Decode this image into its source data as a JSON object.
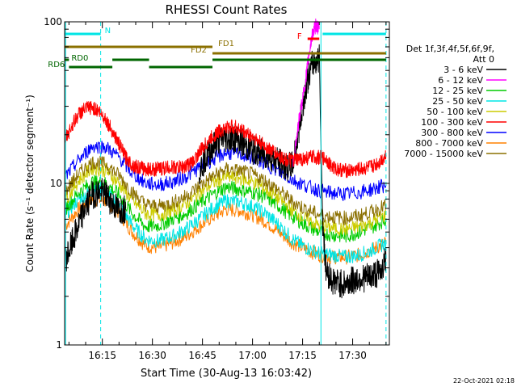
{
  "chart_data": {
    "type": "line",
    "title": "RHESSI Count Rates",
    "xlabel": "Start Time (30-Aug-13 16:03:42)",
    "ylabel": "Count Rate (s⁻¹ detector segment⁻¹)",
    "footer": "22-Oct-2021 02:18",
    "y_scale": "log",
    "ylim": [
      1,
      100
    ],
    "xlim": [
      "16:03:42",
      "17:41:00"
    ],
    "x_ticks": [
      "16:15",
      "16:30",
      "16:45",
      "17:00",
      "17:15",
      "17:30"
    ],
    "y_ticks": [
      "1",
      "10",
      "100"
    ],
    "legend": {
      "placement": "right",
      "header": [
        "Det 1f,3f,4f,5f,6f,9f,",
        "Att 0"
      ],
      "entries": [
        {
          "label": "3 - 6 keV",
          "color": "#000000"
        },
        {
          "label": "6 - 12 keV",
          "color": "#ff00ff"
        },
        {
          "label": "12 - 25 keV",
          "color": "#00cc00"
        },
        {
          "label": "25 - 50 keV",
          "color": "#00e5e5"
        },
        {
          "label": "50 - 100 keV",
          "color": "#cccc00"
        },
        {
          "label": "100 - 300 keV",
          "color": "#ff0000"
        },
        {
          "label": "300 - 800 keV",
          "color": "#0000ff"
        },
        {
          "label": "800 - 7000 keV",
          "color": "#ff8000"
        },
        {
          "label": "7000 - 15000 keV",
          "color": "#8b7000"
        }
      ]
    },
    "flags": [
      {
        "label": "N",
        "color": "#00e5e5",
        "segments": [
          [
            "16:03:42",
            "16:14:30"
          ],
          [
            "17:21:00",
            "17:40:00"
          ]
        ]
      },
      {
        "label": "FD1",
        "color": "#8b7000",
        "segments": [
          [
            "16:03:42",
            "16:48:00"
          ]
        ]
      },
      {
        "label": "FD2",
        "color": "#8b7000",
        "segments": [
          [
            "16:48:00",
            "17:40:00"
          ]
        ]
      },
      {
        "label": "F",
        "color": "#ff0000",
        "segments": [
          [
            "17:16:30",
            "17:20:00"
          ]
        ]
      },
      {
        "label": "RD0",
        "color": "#006600",
        "segments": [
          [
            "16:03:42",
            "16:05:00"
          ],
          [
            "16:18:00",
            "16:29:00"
          ],
          [
            "16:48:00",
            "17:40:00"
          ]
        ]
      },
      {
        "label": "RD6",
        "color": "#006600",
        "segments": [
          [
            "16:05:00",
            "16:18:00"
          ],
          [
            "16:29:00",
            "16:48:00"
          ]
        ]
      }
    ],
    "vertical_markers": [
      {
        "time": "16:04:00",
        "color": "#00e5e5",
        "style": "solid"
      },
      {
        "time": "16:14:30",
        "color": "#00e5e5",
        "style": "dashed"
      },
      {
        "time": "17:20:30",
        "color": "#00e5e5",
        "style": "solid"
      },
      {
        "time": "17:40:00",
        "color": "#00e5e5",
        "style": "dashed"
      }
    ],
    "series": [
      {
        "name": "3 - 6 keV",
        "color": "#000000",
        "x": [
          "16:04",
          "16:06",
          "16:08",
          "16:10",
          "16:12",
          "16:14",
          "16:16",
          "16:18",
          "16:20",
          "16:22",
          "16:24",
          "16:26",
          "16:28",
          "16:30",
          "16:32",
          "16:34",
          "16:36",
          "16:38",
          "16:40",
          "16:42",
          "16:44",
          "16:46",
          "16:48",
          "16:50",
          "16:52",
          "16:54",
          "16:56",
          "16:58",
          "17:00",
          "17:02",
          "17:04",
          "17:06",
          "17:08",
          "17:10",
          "17:12",
          "17:14",
          "17:16",
          "17:18",
          "17:20",
          "17:21",
          "17:22",
          "17:24",
          "17:26",
          "17:28",
          "17:30",
          "17:32",
          "17:34",
          "17:36",
          "17:38",
          "17:40"
        ],
        "y": [
          3.4,
          4.3,
          5.6,
          7.2,
          8.5,
          8.9,
          8.6,
          7.5,
          6.8,
          7.0,
          null,
          null,
          null,
          null,
          null,
          null,
          null,
          null,
          null,
          null,
          12.0,
          14.5,
          16.8,
          18.5,
          19.0,
          19.2,
          18.5,
          17.0,
          16.0,
          15.5,
          15.0,
          14.5,
          13.5,
          12.5,
          13.0,
          22.0,
          40.0,
          55.0,
          60.0,
          6.0,
          2.9,
          2.5,
          2.4,
          2.4,
          2.5,
          2.6,
          2.6,
          2.7,
          2.8,
          3.4
        ]
      },
      {
        "name": "6 - 12 keV",
        "color": "#ff00ff",
        "x": [
          "17:12",
          "17:14",
          "17:16",
          "17:17",
          "17:18",
          "17:19",
          "17:20"
        ],
        "y": [
          13.0,
          25.0,
          45.0,
          65.0,
          85.0,
          95.0,
          90.0
        ]
      },
      {
        "name": "12 - 25 keV",
        "color": "#00cc00",
        "x": [
          "16:04",
          "16:08",
          "16:12",
          "16:16",
          "16:20",
          "16:24",
          "16:28",
          "16:32",
          "16:36",
          "16:40",
          "16:44",
          "16:48",
          "16:52",
          "16:56",
          "17:00",
          "17:04",
          "17:08",
          "17:12",
          "17:16",
          "17:20",
          "17:24",
          "17:28",
          "17:32",
          "17:36",
          "17:40"
        ],
        "y": [
          7.0,
          8.8,
          10.2,
          10.0,
          8.5,
          6.5,
          5.4,
          5.5,
          6.0,
          6.5,
          7.5,
          8.5,
          9.5,
          9.2,
          8.8,
          8.2,
          7.2,
          6.2,
          5.5,
          5.0,
          4.8,
          4.7,
          5.0,
          5.4,
          6.0
        ]
      },
      {
        "name": "25 - 50 keV",
        "color": "#00e5e5",
        "x": [
          "16:04",
          "16:08",
          "16:12",
          "16:16",
          "16:20",
          "16:24",
          "16:28",
          "16:32",
          "16:36",
          "16:40",
          "16:44",
          "16:48",
          "16:52",
          "16:56",
          "17:00",
          "17:04",
          "17:08",
          "17:12",
          "17:16",
          "17:20",
          "17:24",
          "17:28",
          "17:32",
          "17:36",
          "17:40"
        ],
        "y": [
          6.5,
          8.0,
          9.2,
          9.0,
          7.5,
          5.5,
          4.5,
          4.4,
          4.7,
          5.2,
          6.0,
          7.0,
          7.8,
          7.7,
          7.2,
          6.5,
          5.5,
          4.5,
          4.0,
          3.7,
          3.6,
          3.5,
          3.6,
          3.9,
          4.3
        ]
      },
      {
        "name": "50 - 100 keV",
        "color": "#cccc00",
        "x": [
          "16:04",
          "16:08",
          "16:12",
          "16:16",
          "16:20",
          "16:24",
          "16:28",
          "16:32",
          "16:36",
          "16:40",
          "16:44",
          "16:48",
          "16:52",
          "16:56",
          "17:00",
          "17:04",
          "17:08",
          "17:12",
          "17:16",
          "17:20",
          "17:24",
          "17:28",
          "17:32",
          "17:36",
          "17:40"
        ],
        "y": [
          8.0,
          10.5,
          12.5,
          12.0,
          10.0,
          7.8,
          6.5,
          6.4,
          6.8,
          7.5,
          8.7,
          10.0,
          11.0,
          10.8,
          10.2,
          9.2,
          8.0,
          6.8,
          6.0,
          5.5,
          5.3,
          5.2,
          5.4,
          5.8,
          6.4
        ]
      },
      {
        "name": "100 - 300 keV",
        "color": "#ff0000",
        "x": [
          "16:04",
          "16:06",
          "16:08",
          "16:10",
          "16:12",
          "16:14",
          "16:16",
          "16:18",
          "16:20",
          "16:22",
          "16:24",
          "16:26",
          "16:28",
          "16:30",
          "16:32",
          "16:34",
          "16:36",
          "16:38",
          "16:40",
          "16:42",
          "16:44",
          "16:46",
          "16:48",
          "16:50",
          "16:52",
          "16:54",
          "16:56",
          "16:58",
          "17:00",
          "17:02",
          "17:04",
          "17:06",
          "17:08",
          "17:10",
          "17:12",
          "17:14",
          "17:16",
          "17:18",
          "17:20",
          "17:22",
          "17:24",
          "17:26",
          "17:28",
          "17:30",
          "17:32",
          "17:34",
          "17:36",
          "17:38",
          "17:40"
        ],
        "y": [
          19.0,
          23.0,
          27.0,
          29.0,
          29.5,
          28.0,
          25.0,
          21.0,
          17.5,
          14.5,
          13.0,
          12.5,
          12.3,
          12.2,
          12.3,
          12.5,
          12.6,
          12.5,
          12.8,
          13.5,
          15.5,
          17.5,
          19.5,
          21.0,
          22.0,
          22.5,
          21.8,
          20.5,
          19.5,
          18.0,
          16.8,
          15.8,
          14.8,
          14.0,
          13.8,
          14.0,
          14.3,
          14.5,
          14.5,
          14.2,
          12.5,
          12.2,
          12.0,
          12.0,
          12.2,
          12.4,
          12.8,
          13.5,
          15.0
        ]
      },
      {
        "name": "300 - 800 keV",
        "color": "#0000ff",
        "x": [
          "16:04",
          "16:08",
          "16:12",
          "16:16",
          "16:20",
          "16:24",
          "16:28",
          "16:32",
          "16:36",
          "16:40",
          "16:44",
          "16:48",
          "16:52",
          "16:56",
          "17:00",
          "17:04",
          "17:08",
          "17:12",
          "17:16",
          "17:20",
          "17:24",
          "17:28",
          "17:32",
          "17:36",
          "17:40"
        ],
        "y": [
          11.0,
          14.0,
          17.0,
          16.8,
          14.5,
          11.5,
          10.0,
          9.8,
          10.2,
          11.0,
          12.5,
          14.0,
          15.5,
          15.2,
          14.5,
          13.2,
          11.8,
          10.5,
          9.7,
          9.0,
          8.7,
          8.6,
          8.8,
          9.2,
          9.8
        ]
      },
      {
        "name": "800 - 7000 keV",
        "color": "#ff8000",
        "x": [
          "16:04",
          "16:08",
          "16:12",
          "16:16",
          "16:20",
          "16:24",
          "16:28",
          "16:32",
          "16:36",
          "16:40",
          "16:44",
          "16:48",
          "16:52",
          "16:56",
          "17:00",
          "17:04",
          "17:08",
          "17:12",
          "17:16",
          "17:20",
          "17:24",
          "17:28",
          "17:32",
          "17:36",
          "17:40"
        ],
        "y": [
          5.5,
          7.0,
          8.0,
          7.8,
          6.6,
          5.0,
          4.1,
          4.0,
          4.3,
          4.7,
          5.4,
          6.2,
          6.9,
          6.8,
          6.4,
          5.8,
          5.0,
          4.3,
          3.9,
          3.6,
          3.5,
          3.5,
          3.6,
          3.9,
          4.3
        ]
      },
      {
        "name": "7000 - 15000 keV",
        "color": "#8b7000",
        "x": [
          "16:04",
          "16:08",
          "16:12",
          "16:16",
          "16:20",
          "16:24",
          "16:28",
          "16:32",
          "16:36",
          "16:40",
          "16:44",
          "16:48",
          "16:52",
          "16:56",
          "17:00",
          "17:04",
          "17:08",
          "17:12",
          "17:16",
          "17:20",
          "17:24",
          "17:28",
          "17:32",
          "17:36",
          "17:40"
        ],
        "y": [
          9.0,
          11.5,
          13.5,
          13.2,
          11.2,
          8.8,
          7.4,
          7.2,
          7.6,
          8.3,
          9.6,
          11.0,
          12.2,
          12.0,
          11.4,
          10.3,
          9.0,
          7.7,
          6.9,
          6.4,
          6.2,
          6.1,
          6.3,
          6.7,
          7.3
        ]
      }
    ]
  }
}
